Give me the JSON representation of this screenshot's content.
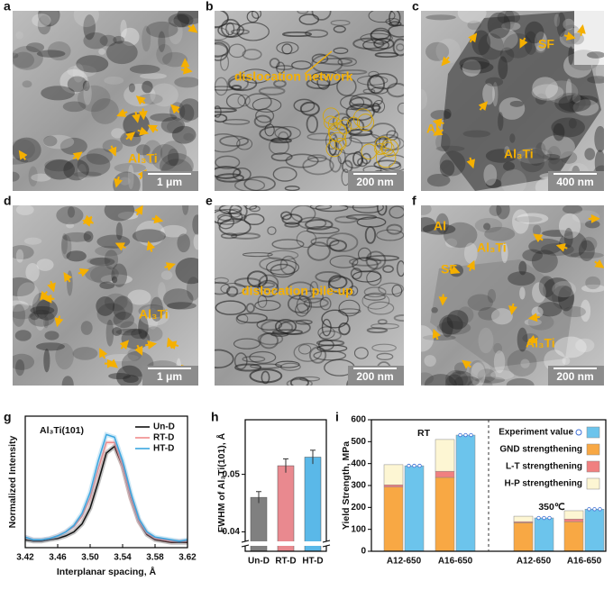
{
  "panels": [
    {
      "letter": "a",
      "scale_bar": "1 μm",
      "labels": [
        "Al₃Ti"
      ]
    },
    {
      "letter": "b",
      "scale_bar": "200 nm",
      "labels": [
        "dislocation network"
      ]
    },
    {
      "letter": "c",
      "scale_bar": "400 nm",
      "labels": [
        "SF",
        "Al",
        "Al₃Ti"
      ]
    },
    {
      "letter": "d",
      "scale_bar": "1 μm",
      "labels": [
        "Al₃Ti"
      ]
    },
    {
      "letter": "e",
      "scale_bar": "200 nm",
      "labels": [
        "dislocation pile-up"
      ]
    },
    {
      "letter": "f",
      "scale_bar": "200 nm",
      "labels": [
        "Al",
        "Al₃Ti",
        "SF",
        "Al₃Ti"
      ]
    }
  ],
  "chart_data": [
    {
      "type": "line",
      "letter": "g",
      "title": "Al₃Ti(101)",
      "x_label": "Interplanar spacing, Å",
      "y_label": "Normalized Intensity",
      "x": [
        3.42,
        3.43,
        3.44,
        3.45,
        3.46,
        3.47,
        3.48,
        3.49,
        3.5,
        3.51,
        3.52,
        3.53,
        3.54,
        3.55,
        3.56,
        3.57,
        3.58,
        3.59,
        3.6,
        3.61,
        3.62
      ],
      "series": [
        {
          "name": "Un-D",
          "color": "#111111",
          "values": [
            0.06,
            0.05,
            0.05,
            0.06,
            0.07,
            0.09,
            0.12,
            0.18,
            0.3,
            0.5,
            0.72,
            0.77,
            0.62,
            0.38,
            0.2,
            0.1,
            0.06,
            0.05,
            0.04,
            0.04,
            0.04
          ]
        },
        {
          "name": "RT-D",
          "color": "#f08a8a",
          "values": [
            0.08,
            0.06,
            0.06,
            0.07,
            0.09,
            0.12,
            0.16,
            0.24,
            0.38,
            0.6,
            0.8,
            0.8,
            0.62,
            0.38,
            0.2,
            0.11,
            0.07,
            0.06,
            0.05,
            0.05,
            0.05
          ]
        },
        {
          "name": "HT-D",
          "color": "#3aa6e0",
          "values": [
            0.08,
            0.06,
            0.06,
            0.07,
            0.09,
            0.12,
            0.17,
            0.26,
            0.42,
            0.66,
            0.86,
            0.84,
            0.66,
            0.42,
            0.22,
            0.12,
            0.08,
            0.07,
            0.06,
            0.05,
            0.06
          ]
        }
      ],
      "xlim": [
        3.42,
        3.62
      ],
      "xticks": [
        3.42,
        3.46,
        {
          "value": 3.5,
          "label": "3.50"
        },
        3.54,
        3.58,
        3.62
      ],
      "ylim": [
        0,
        1
      ],
      "legend": "upper right"
    },
    {
      "type": "bar",
      "letter": "h",
      "y_label": "FWHM of Al₃Ti(101), Å",
      "categories": [
        "Un-D",
        "RT-D",
        "HT-D"
      ],
      "values": [
        0.046,
        0.0515,
        0.053
      ],
      "errors": [
        0.001,
        0.0012,
        0.0012
      ],
      "colors": [
        "#808080",
        "#e9898f",
        "#5ab8e8"
      ],
      "ylim": [
        0.0385,
        0.0595
      ],
      "yticks": [
        0.04,
        0.05
      ],
      "axis_break": true
    },
    {
      "type": "stacked-bar",
      "letter": "i",
      "y_label": "Yield Strength, MPa",
      "categories": [
        "A12-650",
        "A16-650",
        "A12-650",
        "A16-650"
      ],
      "annotations": [
        "RT",
        "350℃"
      ],
      "series": [
        {
          "name": "Experiment value",
          "color": "#6cc4ec",
          "values": [
            390,
            530,
            152,
            192
          ],
          "errors": [
            4,
            4,
            3,
            4
          ]
        },
        {
          "name": "GND strengthening",
          "color": "#f8a844",
          "stack": "model",
          "values": [
            293,
            337,
            130,
            135
          ]
        },
        {
          "name": "L-T strengthening",
          "color": "#f08080",
          "stack": "model",
          "values": [
            10,
            28,
            5,
            12
          ]
        },
        {
          "name": "H-P strengthening",
          "color": "#fdf6d3",
          "stack": "model",
          "values": [
            92,
            145,
            25,
            38
          ]
        }
      ],
      "ylim": [
        0,
        600
      ],
      "yticks": [
        0,
        100,
        200,
        300,
        400,
        500,
        600
      ],
      "legend": "upper right"
    }
  ]
}
